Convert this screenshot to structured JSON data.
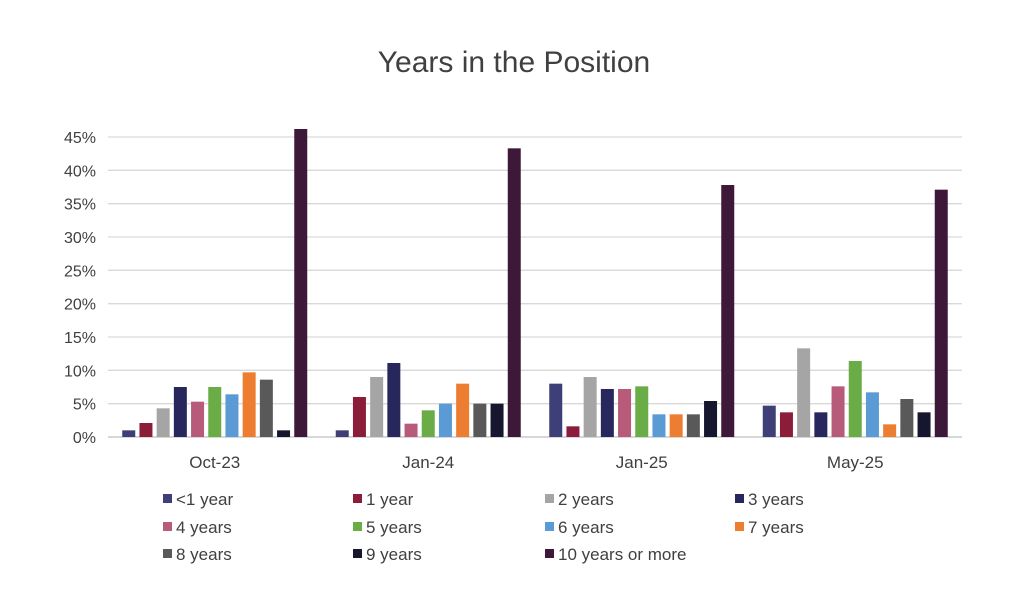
{
  "chart_data": {
    "type": "bar",
    "title": "Years in the Position",
    "xlabel": "",
    "ylabel": "",
    "ylim": [
      0,
      45
    ],
    "yticks": [
      "0%",
      "5%",
      "10%",
      "15%",
      "20%",
      "25%",
      "30%",
      "35%",
      "40%",
      "45%"
    ],
    "ytick_values": [
      0,
      5,
      10,
      15,
      20,
      25,
      30,
      35,
      40,
      45
    ],
    "grid": true,
    "legend_position": "bottom",
    "categories": [
      "Oct-23",
      "Jan-24",
      "Jan-25",
      "May-25"
    ],
    "series": [
      {
        "name": "<1 year",
        "color": "#3f3f78",
        "values": [
          1.0,
          1.0,
          8.0,
          4.7
        ]
      },
      {
        "name": "1 year",
        "color": "#8c1d3a",
        "values": [
          2.1,
          6.0,
          1.6,
          3.7
        ]
      },
      {
        "name": "2 years",
        "color": "#a5a5a5",
        "values": [
          4.3,
          9.0,
          9.0,
          13.3
        ]
      },
      {
        "name": "3 years",
        "color": "#27275e",
        "values": [
          7.5,
          11.1,
          7.2,
          3.7
        ]
      },
      {
        "name": "4 years",
        "color": "#b85b7b",
        "values": [
          5.3,
          2.0,
          7.2,
          7.6
        ]
      },
      {
        "name": "5 years",
        "color": "#6aac45",
        "values": [
          7.5,
          4.0,
          7.6,
          11.4
        ]
      },
      {
        "name": "6 years",
        "color": "#5b9bd5",
        "values": [
          6.4,
          5.0,
          3.4,
          6.7
        ]
      },
      {
        "name": "7 years",
        "color": "#ed7d31",
        "values": [
          9.7,
          8.0,
          3.4,
          1.9
        ]
      },
      {
        "name": "8 years",
        "color": "#595959",
        "values": [
          8.6,
          5.0,
          3.4,
          5.7
        ]
      },
      {
        "name": "9 years",
        "color": "#16162e",
        "values": [
          1.0,
          5.0,
          5.4,
          3.7
        ]
      },
      {
        "name": "10 years or more",
        "color": "#3e1839",
        "values": [
          46.2,
          43.3,
          37.8,
          37.1
        ]
      }
    ]
  }
}
